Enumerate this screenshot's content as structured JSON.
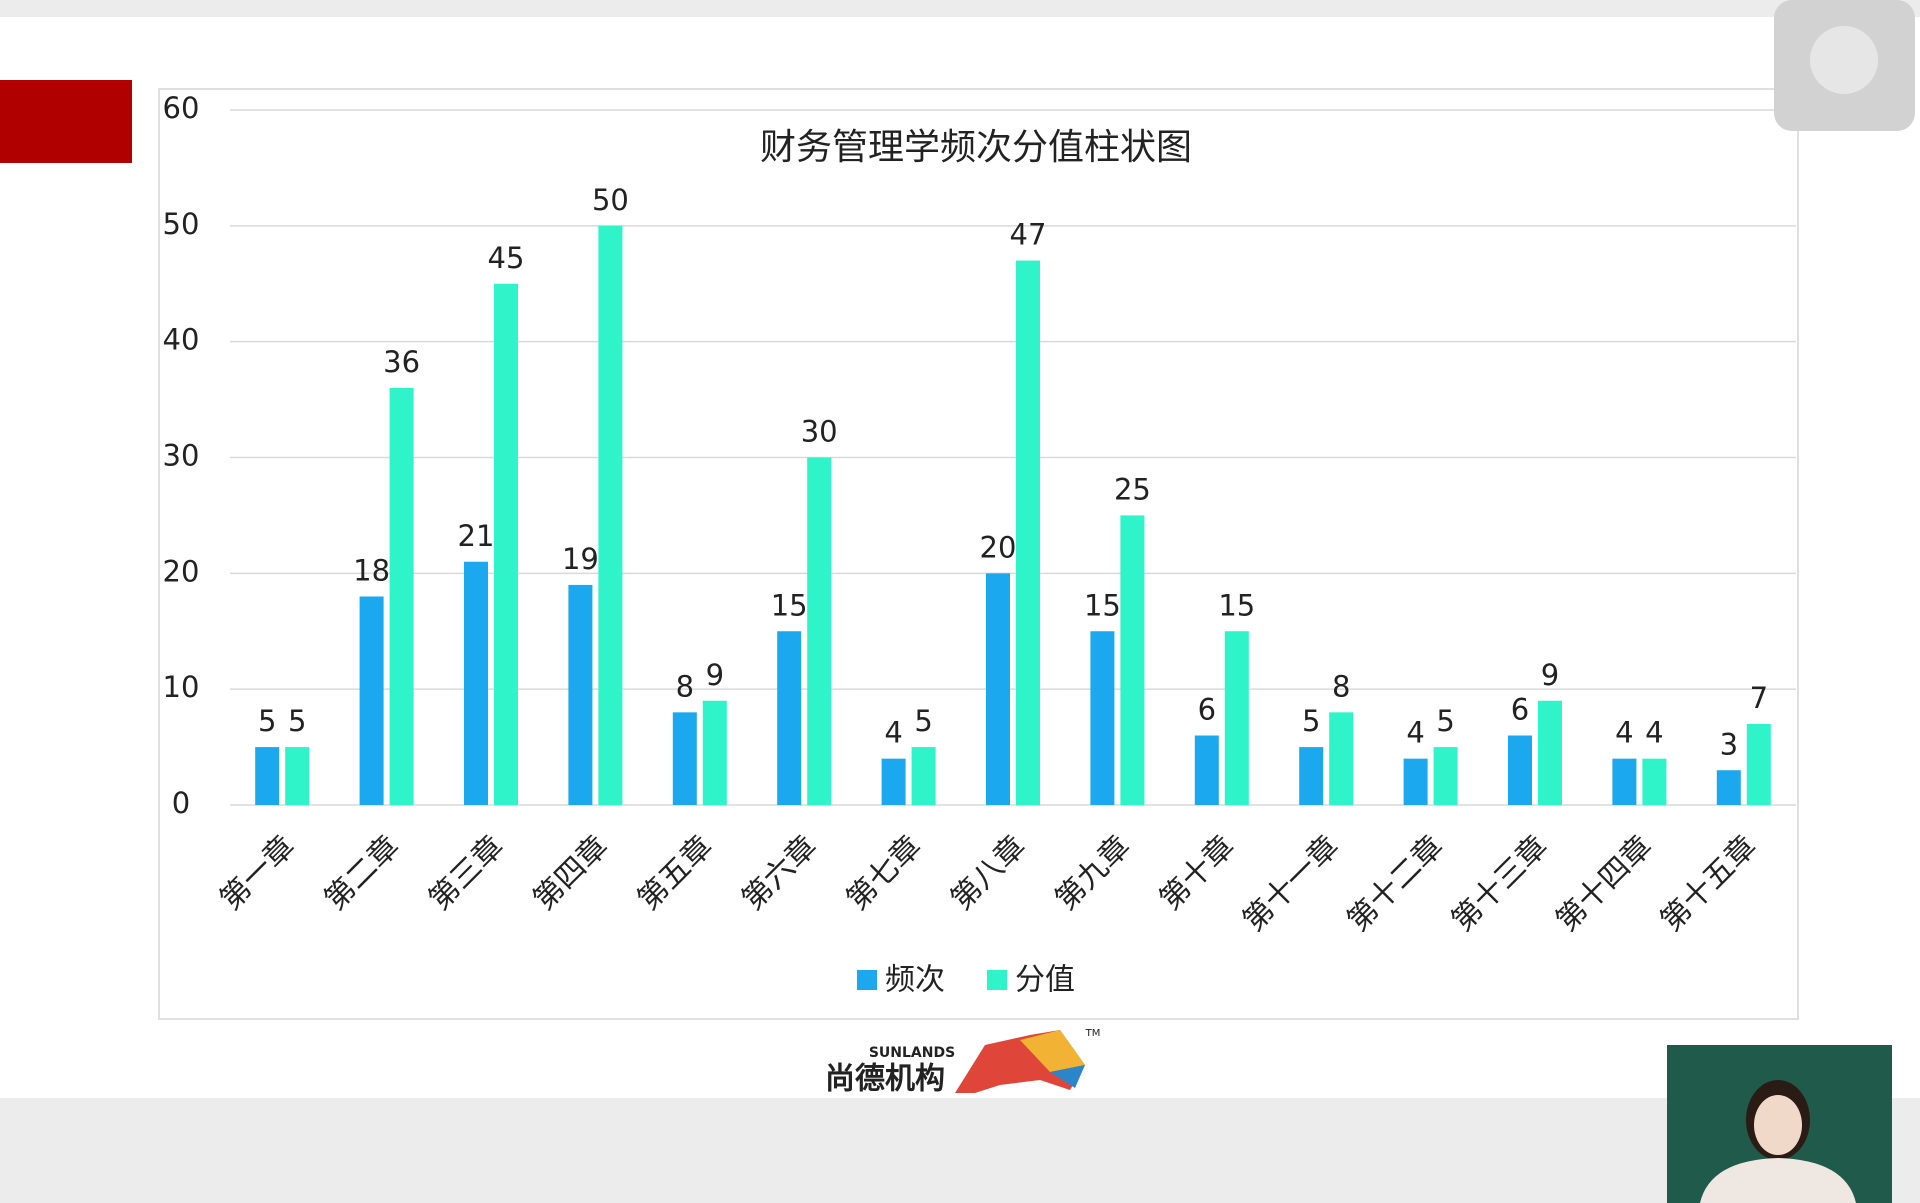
{
  "chart_data": {
    "type": "bar",
    "title": "财务管理学频次分值柱状图",
    "categories": [
      "第一章",
      "第二章",
      "第三章",
      "第四章",
      "第五章",
      "第六章",
      "第七章",
      "第八章",
      "第九章",
      "第十章",
      "第十一章",
      "第十二章",
      "第十三章",
      "第十四章",
      "第十五章"
    ],
    "series": [
      {
        "name": "频次",
        "color": "#1ca8ee",
        "values": [
          5,
          18,
          21,
          19,
          8,
          15,
          4,
          20,
          15,
          6,
          5,
          4,
          6,
          4,
          3
        ]
      },
      {
        "name": "分值",
        "color": "#2ff3c9",
        "values": [
          5,
          36,
          45,
          50,
          9,
          30,
          5,
          47,
          25,
          15,
          8,
          5,
          9,
          4,
          7
        ]
      }
    ],
    "ylim": [
      0,
      60
    ],
    "yticks": [
      0,
      10,
      20,
      30,
      40,
      50,
      60
    ],
    "grid": true,
    "legend": "bottom"
  },
  "branding": {
    "en": "SUNLANDS",
    "cn": "尚德机构",
    "mark": "TM"
  }
}
